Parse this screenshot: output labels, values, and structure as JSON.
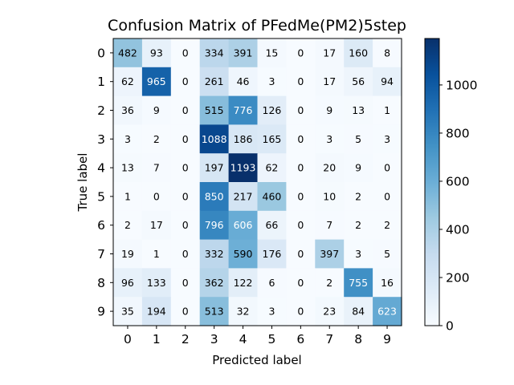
{
  "chart_data": {
    "type": "heatmap",
    "title": "Confusion Matrix of PFedMe(PM2)5step",
    "xlabel": "Predicted label",
    "ylabel": "True label",
    "x_categories": [
      "0",
      "1",
      "2",
      "3",
      "4",
      "5",
      "6",
      "7",
      "8",
      "9"
    ],
    "y_categories": [
      "0",
      "1",
      "2",
      "3",
      "4",
      "5",
      "6",
      "7",
      "8",
      "9"
    ],
    "values": [
      [
        482,
        93,
        0,
        334,
        391,
        15,
        0,
        17,
        160,
        8
      ],
      [
        62,
        965,
        0,
        261,
        46,
        3,
        0,
        17,
        56,
        94
      ],
      [
        36,
        9,
        0,
        515,
        776,
        126,
        0,
        9,
        13,
        1
      ],
      [
        3,
        2,
        0,
        1088,
        186,
        165,
        0,
        3,
        5,
        3
      ],
      [
        13,
        7,
        0,
        197,
        1193,
        62,
        0,
        20,
        9,
        0
      ],
      [
        1,
        0,
        0,
        850,
        217,
        460,
        0,
        10,
        2,
        0
      ],
      [
        2,
        17,
        0,
        796,
        606,
        66,
        0,
        7,
        2,
        2
      ],
      [
        19,
        1,
        0,
        332,
        590,
        176,
        0,
        397,
        3,
        5
      ],
      [
        96,
        133,
        0,
        362,
        122,
        6,
        0,
        2,
        755,
        16
      ],
      [
        35,
        194,
        0,
        513,
        32,
        3,
        0,
        23,
        84,
        623
      ]
    ],
    "colormap": "Blues",
    "colorbar_range": [
      0,
      1193
    ],
    "colorbar_ticks": [
      "0",
      "200",
      "400",
      "600",
      "800",
      "1000"
    ],
    "colorbar_tick_values": [
      0,
      200,
      400,
      600,
      800,
      1000
    ],
    "legend_placement": "right",
    "grid": false
  }
}
